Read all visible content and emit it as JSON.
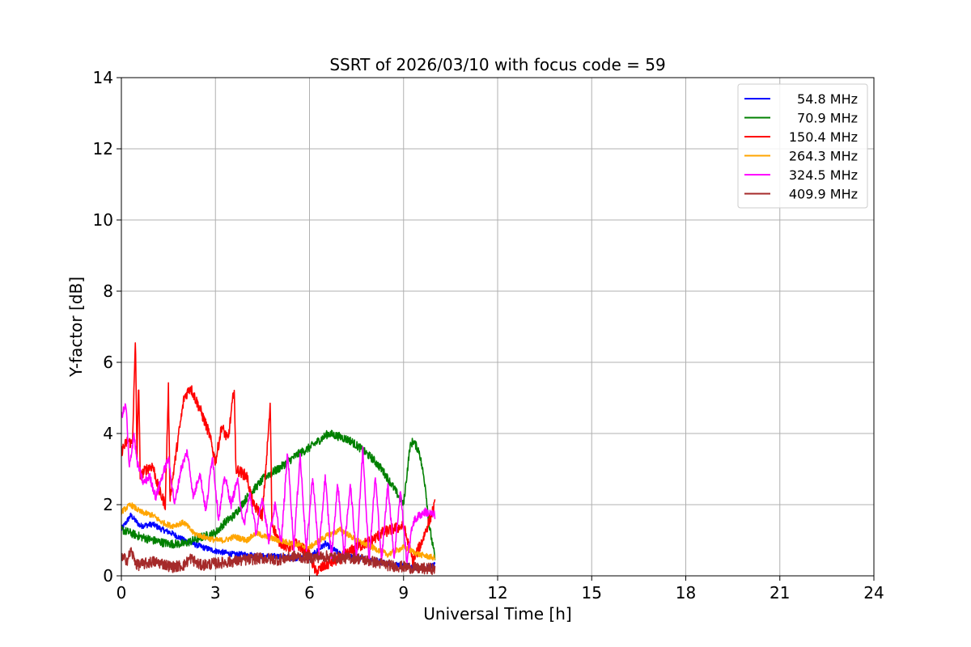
{
  "chart_data": {
    "type": "line",
    "title": "SSRT of 2026/03/10 with focus code = 59",
    "xlabel": "Universal Time [h]",
    "ylabel": "Y-factor [dB]",
    "xlim": [
      0,
      24
    ],
    "ylim": [
      0,
      14
    ],
    "xticks": [
      0,
      3,
      6,
      9,
      12,
      15,
      18,
      21,
      24
    ],
    "yticks": [
      0,
      2,
      4,
      6,
      8,
      10,
      12,
      14
    ],
    "grid": true,
    "legend_position": "top-right",
    "series": [
      {
        "name": "54.8 MHz",
        "color": "#0000ff",
        "points": [
          [
            0,
            1.3
          ],
          [
            0.3,
            1.7
          ],
          [
            0.6,
            1.4
          ],
          [
            1.0,
            1.45
          ],
          [
            1.3,
            1.3
          ],
          [
            1.6,
            1.2
          ],
          [
            2.0,
            1.0
          ],
          [
            2.3,
            0.9
          ],
          [
            2.6,
            0.8
          ],
          [
            3.0,
            0.7
          ],
          [
            3.3,
            0.65
          ],
          [
            3.6,
            0.6
          ],
          [
            4.0,
            0.6
          ],
          [
            4.5,
            0.55
          ],
          [
            5.0,
            0.55
          ],
          [
            5.5,
            0.5
          ],
          [
            6.0,
            0.5
          ],
          [
            6.5,
            0.9
          ],
          [
            7.0,
            0.6
          ],
          [
            7.5,
            0.5
          ],
          [
            8.0,
            0.45
          ],
          [
            8.5,
            0.35
          ],
          [
            9.0,
            0.3
          ],
          [
            9.5,
            0.2
          ],
          [
            10.0,
            0.3
          ]
        ]
      },
      {
        "name": "70.9 MHz",
        "color": "#008000",
        "points": [
          [
            0,
            1.3
          ],
          [
            0.3,
            1.2
          ],
          [
            0.6,
            1.1
          ],
          [
            1.0,
            1.0
          ],
          [
            1.5,
            0.9
          ],
          [
            2.0,
            0.9
          ],
          [
            2.3,
            1.0
          ],
          [
            2.6,
            1.1
          ],
          [
            3.0,
            1.2
          ],
          [
            3.3,
            1.5
          ],
          [
            3.6,
            1.7
          ],
          [
            4.0,
            2.2
          ],
          [
            4.3,
            2.5
          ],
          [
            4.6,
            2.8
          ],
          [
            5.0,
            3.0
          ],
          [
            5.3,
            3.2
          ],
          [
            5.6,
            3.4
          ],
          [
            6.0,
            3.6
          ],
          [
            6.3,
            3.8
          ],
          [
            6.6,
            4.0
          ],
          [
            7.0,
            3.9
          ],
          [
            7.3,
            3.8
          ],
          [
            7.6,
            3.6
          ],
          [
            8.0,
            3.3
          ],
          [
            8.3,
            3.0
          ],
          [
            8.6,
            2.6
          ],
          [
            9.0,
            2.0
          ],
          [
            9.2,
            3.6
          ],
          [
            9.3,
            3.8
          ],
          [
            9.5,
            3.5
          ],
          [
            9.7,
            2.5
          ],
          [
            9.8,
            1.5
          ],
          [
            10.0,
            0.5
          ]
        ]
      },
      {
        "name": "150.4 MHz",
        "color": "#ff0000",
        "points": [
          [
            0,
            3.5
          ],
          [
            0.2,
            3.8
          ],
          [
            0.35,
            3.7
          ],
          [
            0.45,
            6.6
          ],
          [
            0.5,
            3.3
          ],
          [
            0.55,
            5.6
          ],
          [
            0.6,
            2.8
          ],
          [
            0.8,
            3.0
          ],
          [
            1.0,
            3.1
          ],
          [
            1.2,
            2.4
          ],
          [
            1.4,
            2.0
          ],
          [
            1.5,
            5.3
          ],
          [
            1.55,
            2.2
          ],
          [
            1.8,
            3.8
          ],
          [
            2.0,
            5.0
          ],
          [
            2.2,
            5.3
          ],
          [
            2.5,
            4.7
          ],
          [
            2.8,
            4.0
          ],
          [
            3.0,
            3.2
          ],
          [
            3.2,
            4.2
          ],
          [
            3.4,
            3.8
          ],
          [
            3.6,
            5.3
          ],
          [
            3.65,
            3.0
          ],
          [
            4.0,
            2.8
          ],
          [
            4.2,
            2.0
          ],
          [
            4.5,
            1.7
          ],
          [
            4.75,
            4.8
          ],
          [
            4.8,
            1.5
          ],
          [
            5.0,
            1.0
          ],
          [
            5.3,
            0.8
          ],
          [
            5.6,
            0.9
          ],
          [
            6.0,
            0.6
          ],
          [
            6.2,
            0.1
          ],
          [
            6.5,
            0.3
          ],
          [
            7.0,
            0.5
          ],
          [
            7.5,
            0.8
          ],
          [
            8.0,
            1.0
          ],
          [
            8.3,
            1.2
          ],
          [
            8.6,
            1.3
          ],
          [
            9.0,
            1.4
          ],
          [
            9.3,
            0.4
          ],
          [
            9.6,
            1.0
          ],
          [
            10.0,
            2.0
          ]
        ]
      },
      {
        "name": "264.3 MHz",
        "color": "#ffa500",
        "points": [
          [
            0,
            1.8
          ],
          [
            0.3,
            2.0
          ],
          [
            0.6,
            1.8
          ],
          [
            1.0,
            1.7
          ],
          [
            1.3,
            1.5
          ],
          [
            1.6,
            1.4
          ],
          [
            2.0,
            1.5
          ],
          [
            2.3,
            1.2
          ],
          [
            2.6,
            1.1
          ],
          [
            3.0,
            1.0
          ],
          [
            3.3,
            1.0
          ],
          [
            3.6,
            1.1
          ],
          [
            4.0,
            1.0
          ],
          [
            4.3,
            1.2
          ],
          [
            4.6,
            1.1
          ],
          [
            5.0,
            1.0
          ],
          [
            5.5,
            0.9
          ],
          [
            6.0,
            0.8
          ],
          [
            6.5,
            1.1
          ],
          [
            7.0,
            1.3
          ],
          [
            7.5,
            1.0
          ],
          [
            8.0,
            0.8
          ],
          [
            8.5,
            0.6
          ],
          [
            9.0,
            0.8
          ],
          [
            9.5,
            0.6
          ],
          [
            10.0,
            0.5
          ]
        ]
      },
      {
        "name": "324.5 MHz",
        "color": "#ff00ff",
        "points": [
          [
            0,
            4.5
          ],
          [
            0.15,
            4.8
          ],
          [
            0.25,
            3.0
          ],
          [
            0.4,
            4.0
          ],
          [
            0.5,
            3.2
          ],
          [
            0.7,
            2.6
          ],
          [
            0.9,
            2.8
          ],
          [
            1.1,
            2.2
          ],
          [
            1.3,
            2.8
          ],
          [
            1.5,
            3.3
          ],
          [
            1.7,
            2.0
          ],
          [
            1.9,
            3.0
          ],
          [
            2.1,
            3.5
          ],
          [
            2.3,
            2.2
          ],
          [
            2.5,
            2.9
          ],
          [
            2.7,
            1.8
          ],
          [
            2.9,
            3.4
          ],
          [
            3.1,
            1.6
          ],
          [
            3.3,
            2.8
          ],
          [
            3.5,
            2.0
          ],
          [
            3.7,
            2.7
          ],
          [
            3.9,
            1.4
          ],
          [
            4.1,
            2.3
          ],
          [
            4.3,
            1.2
          ],
          [
            4.5,
            2.2
          ],
          [
            4.7,
            1.0
          ],
          [
            4.9,
            2.0
          ],
          [
            5.1,
            0.9
          ],
          [
            5.3,
            3.5
          ],
          [
            5.5,
            0.8
          ],
          [
            5.7,
            3.4
          ],
          [
            5.9,
            0.7
          ],
          [
            6.1,
            2.8
          ],
          [
            6.3,
            0.6
          ],
          [
            6.5,
            2.8
          ],
          [
            6.7,
            0.5
          ],
          [
            6.9,
            2.6
          ],
          [
            7.1,
            0.6
          ],
          [
            7.3,
            2.6
          ],
          [
            7.5,
            0.5
          ],
          [
            7.7,
            3.6
          ],
          [
            7.9,
            0.4
          ],
          [
            8.1,
            2.8
          ],
          [
            8.3,
            0.4
          ],
          [
            8.5,
            2.6
          ],
          [
            8.7,
            0.5
          ],
          [
            8.9,
            2.4
          ],
          [
            9.1,
            0.4
          ],
          [
            9.3,
            1.5
          ],
          [
            9.5,
            1.7
          ],
          [
            9.7,
            1.8
          ],
          [
            10.0,
            1.7
          ]
        ]
      },
      {
        "name": "409.9 MHz",
        "color": "#a52a2a",
        "points": [
          [
            0,
            0.5
          ],
          [
            0.2,
            0.45
          ],
          [
            0.3,
            0.7
          ],
          [
            0.5,
            0.3
          ],
          [
            0.8,
            0.35
          ],
          [
            1.0,
            0.4
          ],
          [
            1.3,
            0.35
          ],
          [
            1.6,
            0.25
          ],
          [
            2.0,
            0.3
          ],
          [
            2.2,
            0.5
          ],
          [
            2.5,
            0.3
          ],
          [
            3.0,
            0.35
          ],
          [
            3.5,
            0.4
          ],
          [
            4.0,
            0.45
          ],
          [
            4.5,
            0.5
          ],
          [
            5.0,
            0.45
          ],
          [
            5.5,
            0.55
          ],
          [
            6.0,
            0.5
          ],
          [
            6.5,
            0.55
          ],
          [
            7.0,
            0.5
          ],
          [
            7.5,
            0.5
          ],
          [
            8.0,
            0.4
          ],
          [
            8.5,
            0.3
          ],
          [
            9.0,
            0.25
          ],
          [
            9.5,
            0.2
          ],
          [
            10.0,
            0.2
          ]
        ]
      }
    ]
  }
}
